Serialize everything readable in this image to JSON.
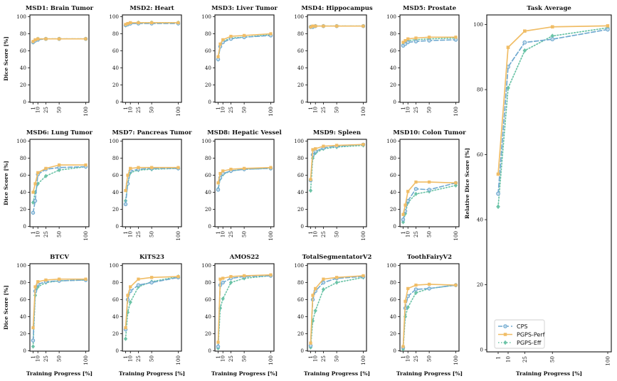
{
  "figure": {
    "xlabel": "Training Progress [%]",
    "ylabel_panels": "Dice Score [%]",
    "ylabel_average": "Relative Dice Score [%]"
  },
  "series_styles": [
    {
      "name": "CPS",
      "color": "#6fa9cf",
      "dash": "6,3",
      "marker": "circle"
    },
    {
      "name": "PGPS-Perf",
      "color": "#f0bd66",
      "dash": "",
      "marker": "square"
    },
    {
      "name": "PGPS-Eff",
      "color": "#68c2a5",
      "dash": "1.5,2.5",
      "marker": "diamond"
    }
  ],
  "chart_data": [
    {
      "type": "line",
      "title": "MSD1: Brain Tumor",
      "x": [
        1,
        5,
        10,
        25,
        50,
        100
      ],
      "ylim": [
        0,
        100
      ],
      "series": [
        {
          "name": "CPS",
          "values": [
            70,
            72,
            73,
            74,
            74,
            74
          ]
        },
        {
          "name": "PGPS-Perf",
          "values": [
            71,
            73,
            74,
            74,
            74,
            74
          ]
        },
        {
          "name": "PGPS-Eff",
          "values": [
            70,
            72,
            74,
            74,
            74,
            74
          ]
        }
      ]
    },
    {
      "type": "line",
      "title": "MSD2: Heart",
      "x": [
        1,
        5,
        10,
        25,
        50,
        100
      ],
      "ylim": [
        0,
        100
      ],
      "series": [
        {
          "name": "CPS",
          "values": [
            90,
            91,
            92,
            92,
            92,
            92
          ]
        },
        {
          "name": "PGPS-Perf",
          "values": [
            91,
            92,
            93,
            93,
            93,
            93
          ]
        },
        {
          "name": "PGPS-Eff",
          "values": [
            90,
            91,
            92,
            93,
            93,
            93
          ]
        }
      ]
    },
    {
      "type": "line",
      "title": "MSD3: Liver Tumor",
      "x": [
        1,
        5,
        10,
        25,
        50,
        100
      ],
      "ylim": [
        0,
        100
      ],
      "series": [
        {
          "name": "CPS",
          "values": [
            50,
            65,
            70,
            74,
            76,
            78
          ]
        },
        {
          "name": "PGPS-Perf",
          "values": [
            53,
            68,
            73,
            77,
            78,
            80
          ]
        },
        {
          "name": "PGPS-Eff",
          "values": [
            50,
            66,
            71,
            75,
            76,
            79
          ]
        }
      ]
    },
    {
      "type": "line",
      "title": "MSD4: Hippocampus",
      "x": [
        1,
        5,
        10,
        25,
        50,
        100
      ],
      "ylim": [
        0,
        100
      ],
      "series": [
        {
          "name": "CPS",
          "values": [
            88,
            88,
            89,
            89,
            89,
            89
          ]
        },
        {
          "name": "PGPS-Perf",
          "values": [
            88,
            89,
            89,
            89,
            89,
            89
          ]
        },
        {
          "name": "PGPS-Eff",
          "values": [
            88,
            88,
            89,
            89,
            89,
            89
          ]
        }
      ]
    },
    {
      "type": "line",
      "title": "MSD5: Prostate",
      "x": [
        1,
        5,
        10,
        25,
        50,
        100
      ],
      "ylim": [
        0,
        100
      ],
      "series": [
        {
          "name": "CPS",
          "values": [
            66,
            68,
            70,
            71,
            72,
            73
          ]
        },
        {
          "name": "PGPS-Perf",
          "values": [
            70,
            72,
            74,
            75,
            76,
            76
          ]
        },
        {
          "name": "PGPS-Eff",
          "values": [
            67,
            70,
            72,
            73,
            74,
            75
          ]
        }
      ]
    },
    {
      "type": "line",
      "title": "MSD6: Lung Tumor",
      "x": [
        1,
        5,
        10,
        25,
        50,
        100
      ],
      "ylim": [
        0,
        100
      ],
      "series": [
        {
          "name": "CPS",
          "values": [
            16,
            30,
            61,
            67,
            69,
            70
          ]
        },
        {
          "name": "PGPS-Perf",
          "values": [
            40,
            50,
            63,
            68,
            72,
            72
          ]
        },
        {
          "name": "PGPS-Eff",
          "values": [
            28,
            40,
            50,
            59,
            66,
            70
          ]
        }
      ]
    },
    {
      "type": "line",
      "title": "MSD7: Pancreas Tumor",
      "x": [
        1,
        5,
        10,
        25,
        50,
        100
      ],
      "ylim": [
        0,
        100
      ],
      "series": [
        {
          "name": "CPS",
          "values": [
            26,
            50,
            65,
            67,
            68,
            68
          ]
        },
        {
          "name": "PGPS-Perf",
          "values": [
            42,
            60,
            68,
            69,
            69,
            69
          ]
        },
        {
          "name": "PGPS-Eff",
          "values": [
            30,
            50,
            63,
            66,
            67,
            68
          ]
        }
      ]
    },
    {
      "type": "line",
      "title": "MSD8: Hepatic Vessel",
      "x": [
        1,
        5,
        10,
        25,
        50,
        100
      ],
      "ylim": [
        0,
        100
      ],
      "series": [
        {
          "name": "CPS",
          "values": [
            43,
            57,
            62,
            65,
            67,
            68
          ]
        },
        {
          "name": "PGPS-Perf",
          "values": [
            51,
            62,
            65,
            67,
            68,
            69
          ]
        },
        {
          "name": "PGPS-Eff",
          "values": [
            44,
            56,
            61,
            65,
            67,
            68
          ]
        }
      ]
    },
    {
      "type": "line",
      "title": "MSD9: Spleen",
      "x": [
        1,
        5,
        10,
        25,
        50,
        100
      ],
      "ylim": [
        0,
        100
      ],
      "series": [
        {
          "name": "CPS",
          "values": [
            54,
            84,
            88,
            92,
            94,
            96
          ]
        },
        {
          "name": "PGPS-Perf",
          "values": [
            55,
            90,
            91,
            94,
            95,
            96
          ]
        },
        {
          "name": "PGPS-Eff",
          "values": [
            42,
            80,
            86,
            91,
            93,
            95
          ]
        }
      ]
    },
    {
      "type": "line",
      "title": "MSD10: Colon Tumor",
      "x": [
        1,
        5,
        10,
        25,
        50,
        100
      ],
      "ylim": [
        0,
        100
      ],
      "series": [
        {
          "name": "CPS",
          "values": [
            8,
            18,
            30,
            44,
            43,
            51
          ]
        },
        {
          "name": "PGPS-Perf",
          "values": [
            14,
            25,
            41,
            52,
            52,
            51
          ]
        },
        {
          "name": "PGPS-Eff",
          "values": [
            5,
            15,
            28,
            38,
            41,
            48
          ]
        }
      ]
    },
    {
      "type": "line",
      "title": "BTCV",
      "x": [
        1,
        5,
        10,
        25,
        50,
        100
      ],
      "ylim": [
        0,
        100
      ],
      "series": [
        {
          "name": "CPS",
          "values": [
            12,
            70,
            78,
            81,
            82,
            83
          ]
        },
        {
          "name": "PGPS-Perf",
          "values": [
            27,
            75,
            81,
            83,
            84,
            84
          ]
        },
        {
          "name": "PGPS-Eff",
          "values": [
            5,
            65,
            75,
            80,
            82,
            83
          ]
        }
      ]
    },
    {
      "type": "line",
      "title": "KiTS23",
      "x": [
        1,
        5,
        10,
        25,
        50,
        100
      ],
      "ylim": [
        0,
        100
      ],
      "series": [
        {
          "name": "CPS",
          "values": [
            25,
            60,
            70,
            77,
            80,
            86
          ]
        },
        {
          "name": "PGPS-Perf",
          "values": [
            27,
            65,
            75,
            84,
            86,
            87
          ]
        },
        {
          "name": "PGPS-Eff",
          "values": [
            14,
            45,
            57,
            75,
            81,
            87
          ]
        }
      ]
    },
    {
      "type": "line",
      "title": "AMOS22",
      "x": [
        1,
        5,
        10,
        25,
        50,
        100
      ],
      "ylim": [
        0,
        100
      ],
      "series": [
        {
          "name": "CPS",
          "values": [
            5,
            77,
            80,
            85,
            87,
            88
          ]
        },
        {
          "name": "PGPS-Perf",
          "values": [
            10,
            84,
            85,
            87,
            88,
            89
          ]
        },
        {
          "name": "PGPS-Eff",
          "values": [
            3,
            50,
            61,
            80,
            85,
            88
          ]
        }
      ]
    },
    {
      "type": "line",
      "title": "TotalSegmentatorV2",
      "x": [
        1,
        5,
        10,
        25,
        50,
        100
      ],
      "ylim": [
        0,
        100
      ],
      "series": [
        {
          "name": "CPS",
          "values": [
            6,
            60,
            70,
            80,
            85,
            87
          ]
        },
        {
          "name": "PGPS-Perf",
          "values": [
            9,
            65,
            73,
            84,
            86,
            88
          ]
        },
        {
          "name": "PGPS-Eff",
          "values": [
            4,
            35,
            47,
            72,
            80,
            86
          ]
        }
      ]
    },
    {
      "type": "line",
      "title": "ToothFairyV2",
      "x": [
        1,
        5,
        10,
        25,
        50,
        100
      ],
      "ylim": [
        0,
        100
      ],
      "series": [
        {
          "name": "CPS",
          "values": [
            4,
            50,
            64,
            72,
            73,
            77
          ]
        },
        {
          "name": "PGPS-Perf",
          "values": [
            5,
            58,
            73,
            77,
            78,
            77
          ]
        },
        {
          "name": "PGPS-Eff",
          "values": [
            2,
            40,
            51,
            68,
            73,
            77
          ]
        }
      ]
    },
    {
      "type": "line",
      "title": "Task Average",
      "x": [
        1,
        10,
        25,
        50,
        100
      ],
      "ylim": [
        0,
        101
      ],
      "yticks": [
        0,
        20,
        40,
        60,
        80,
        100
      ],
      "xlabel": "Training Progress [%]",
      "ylabel": "Relative Dice Score [%]",
      "legend": "lower-left",
      "series": [
        {
          "name": "CPS",
          "values": [
            48,
            87,
            94.5,
            95.5,
            98.5
          ]
        },
        {
          "name": "PGPS-Perf",
          "values": [
            54,
            93,
            98,
            99.3,
            99.6
          ]
        },
        {
          "name": "PGPS-Eff",
          "values": [
            44,
            80.5,
            92,
            96.5,
            99
          ]
        }
      ]
    }
  ]
}
